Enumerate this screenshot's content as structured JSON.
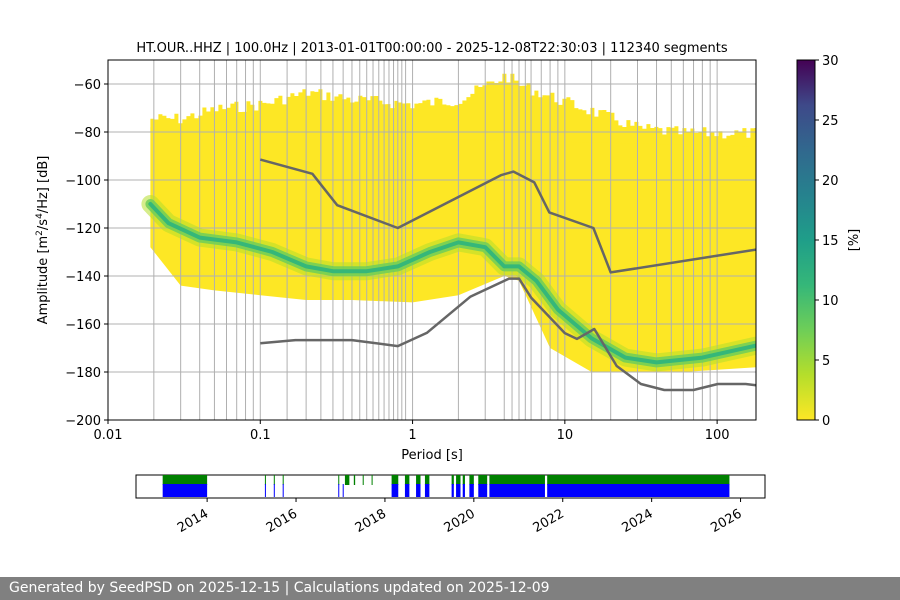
{
  "chart_data": [
    {
      "type": "heatmap",
      "title": "HT.OUR..HHZ | 100.0Hz | 2013-01-01T00:00:00 - 2025-12-08T22:30:03 | 112340 segments",
      "xlabel": "Period [s]",
      "ylabel_parts": [
        "Amplitude [m",
        "2",
        "/s",
        "4",
        "/Hz] [dB]"
      ],
      "xscale": "log",
      "xlim": [
        0.01,
        180
      ],
      "ylim": [
        -200,
        -50
      ],
      "x_ticks": [
        0.01,
        0.1,
        1,
        10,
        100
      ],
      "x_tick_labels": [
        "0.01",
        "0.1",
        "1",
        "10",
        "100"
      ],
      "y_ticks": [
        -200,
        -180,
        -160,
        -140,
        -120,
        -100,
        -80,
        -60
      ],
      "y_tick_labels": [
        "−200",
        "−180",
        "−160",
        "−140",
        "−120",
        "−100",
        "−80",
        "−60"
      ],
      "grid": true,
      "vertical_grid_periods": [
        0.02,
        0.03,
        0.04,
        0.05,
        0.06,
        0.07,
        0.08,
        0.09,
        0.1,
        0.15,
        0.2,
        0.25,
        0.3,
        0.35,
        0.4,
        0.45,
        0.5,
        0.55,
        0.6,
        0.65,
        0.7,
        0.75,
        0.8,
        0.85,
        0.9,
        1.0,
        2,
        3,
        4,
        4.5,
        5,
        5.5,
        6,
        7,
        8,
        9,
        10,
        15,
        20,
        30,
        40,
        50,
        60,
        70,
        80,
        90,
        100
      ],
      "density_envelope": {
        "period": [
          0.019,
          0.03,
          0.05,
          0.1,
          0.2,
          0.4,
          1,
          2,
          4,
          5,
          8,
          15,
          30,
          60,
          180
        ],
        "upper_db": [
          -72,
          -72,
          -68,
          -66,
          -61,
          -64,
          -66,
          -64,
          -54,
          -58,
          -63,
          -69,
          -76,
          -78,
          -78
        ],
        "lower_db": [
          -128,
          -144,
          -146,
          -148,
          -150,
          -150,
          -151,
          -148,
          -140,
          -142,
          -170,
          -180,
          -180,
          -180,
          -178
        ]
      },
      "mode_curve": {
        "period": [
          0.019,
          0.025,
          0.04,
          0.07,
          0.12,
          0.2,
          0.3,
          0.5,
          0.8,
          1.3,
          2,
          3,
          4,
          5,
          6.5,
          9,
          15,
          25,
          40,
          80,
          180
        ],
        "db": [
          -110,
          -118,
          -124,
          -126,
          -130,
          -136,
          -138,
          -138,
          -136,
          -130,
          -126,
          -128,
          -136,
          -136,
          -142,
          -154,
          -166,
          -174,
          -176,
          -174,
          -169
        ]
      },
      "nhnm": {
        "name": "New High Noise Model",
        "period": [
          0.1,
          0.22,
          0.32,
          0.8,
          3.8,
          4.6,
          6.3,
          7.9,
          15.4,
          20,
          180
        ],
        "db": [
          -91.5,
          -97.4,
          -110.5,
          -120,
          -98,
          -96.5,
          -101,
          -113.5,
          -120,
          -138.5,
          -129
        ]
      },
      "nlnm": {
        "name": "New Low Noise Model",
        "period": [
          0.1,
          0.17,
          0.4,
          0.8,
          1.24,
          2.4,
          4.3,
          5,
          6,
          10,
          12,
          15.6,
          21.9,
          31.6,
          45,
          70,
          101,
          154,
          180
        ],
        "db": [
          -168,
          -166.7,
          -166.7,
          -169.2,
          -163.7,
          -148.6,
          -141.1,
          -141.1,
          -149,
          -163.8,
          -166.2,
          -162.1,
          -177.5,
          -185,
          -187.5,
          -187.5,
          -185,
          -185,
          -185.5
        ]
      },
      "colorbar": {
        "label": "[%]",
        "range": [
          0,
          30
        ],
        "ticks": [
          0,
          5,
          10,
          15,
          20,
          25,
          30
        ],
        "tick_labels": [
          "0",
          "5",
          "10",
          "15",
          "20",
          "25",
          "30"
        ],
        "colormap": "viridis"
      },
      "colors": {
        "density": "#fde725",
        "mode": "#35b779",
        "noise_model": "#666666",
        "grid": "#b0b0b0"
      }
    },
    {
      "type": "timeline",
      "xlim": [
        2012.4,
        2026.55
      ],
      "year_ticks": [
        2014,
        2016,
        2018,
        2020,
        2022,
        2024,
        2026
      ],
      "year_tick_labels": [
        "2014",
        "2016",
        "2018",
        "2020",
        "2022",
        "2024",
        "2026"
      ],
      "series": [
        {
          "name": "coverage-green",
          "color": "#008000",
          "intervals": [
            [
              2013.0,
              2014.0
            ],
            [
              2015.3,
              2015.32
            ],
            [
              2015.5,
              2015.52
            ],
            [
              2015.7,
              2015.72
            ],
            [
              2016.95,
              2016.97
            ],
            [
              2017.1,
              2017.2
            ],
            [
              2017.3,
              2017.33
            ],
            [
              2017.5,
              2017.52
            ],
            [
              2017.7,
              2017.72
            ],
            [
              2018.15,
              2018.3
            ],
            [
              2018.45,
              2018.55
            ],
            [
              2018.7,
              2018.8
            ],
            [
              2018.9,
              2019.0
            ],
            [
              2019.5,
              2019.55
            ],
            [
              2019.6,
              2019.7
            ],
            [
              2019.75,
              2019.8
            ],
            [
              2019.9,
              2020.0
            ],
            [
              2020.1,
              2020.3
            ],
            [
              2020.35,
              2021.6
            ],
            [
              2021.65,
              2025.75
            ]
          ]
        },
        {
          "name": "coverage-blue",
          "color": "#0000ff",
          "intervals": [
            [
              2013.0,
              2014.0
            ],
            [
              2015.3,
              2015.32
            ],
            [
              2015.5,
              2015.52
            ],
            [
              2015.7,
              2015.72
            ],
            [
              2016.95,
              2016.97
            ],
            [
              2017.05,
              2017.07
            ],
            [
              2018.15,
              2018.3
            ],
            [
              2018.45,
              2018.55
            ],
            [
              2018.7,
              2018.8
            ],
            [
              2018.9,
              2019.0
            ],
            [
              2019.5,
              2019.55
            ],
            [
              2019.6,
              2019.7
            ],
            [
              2019.75,
              2019.8
            ],
            [
              2019.9,
              2020.0
            ],
            [
              2020.1,
              2020.3
            ],
            [
              2020.35,
              2021.6
            ],
            [
              2021.65,
              2025.75
            ]
          ]
        }
      ]
    }
  ],
  "footer": {
    "text": "Generated by SeedPSD on 2025-12-15 | Calculations updated on 2025-12-09"
  }
}
